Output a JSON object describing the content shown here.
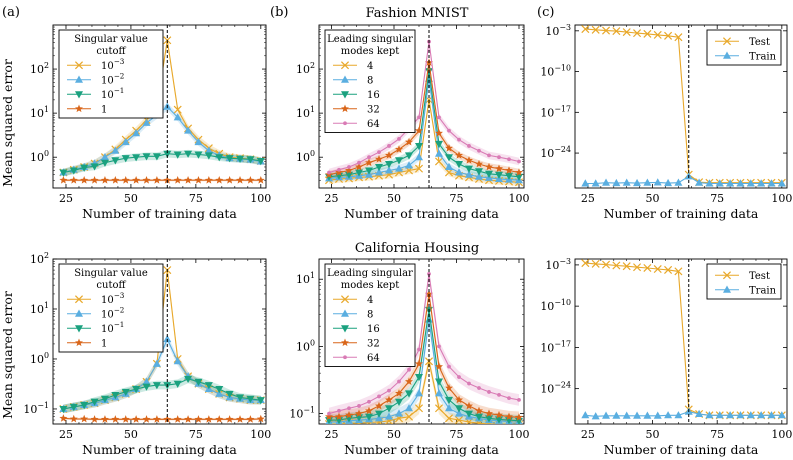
{
  "panel_labels": [
    "(a)",
    "(b)",
    "(c)"
  ],
  "titles": {
    "top": "Fashion MNIST",
    "bottom": "California Housing"
  },
  "ylabel": "Mean squared error",
  "xlabel": "Number of training data",
  "legend_titles": {
    "a": "Singular value cutoff",
    "b": "Leading singular modes kept"
  },
  "colors": {
    "yellow": "#e8a82a",
    "blue": "#5aaee0",
    "green": "#1aa17f",
    "orange": "#d9661a",
    "pink": "#d97bb5"
  },
  "chart_data": [
    {
      "id": "fashion_a",
      "type": "line",
      "title": "",
      "xlabel": "Number of training data",
      "ylabel": "Mean squared error",
      "yscale": "log",
      "xlim": [
        20,
        102
      ],
      "ylim": [
        0.2,
        1000
      ],
      "xticks": [
        25,
        50,
        75,
        100
      ],
      "yticks": [
        1,
        10,
        100
      ],
      "yticklabels": [
        "10^0",
        "10^1",
        "10^2"
      ],
      "vline": 64,
      "legend": {
        "title": "Singular value cutoff",
        "position": "upper-left"
      },
      "x": [
        24,
        28,
        32,
        36,
        40,
        44,
        48,
        52,
        56,
        60,
        64,
        68,
        72,
        76,
        80,
        84,
        88,
        92,
        96,
        100
      ],
      "series": [
        {
          "name": "10^-3",
          "marker": "x",
          "color": "#e8a82a",
          "values": [
            0.45,
            0.52,
            0.6,
            0.72,
            1.0,
            1.5,
            2.5,
            4.0,
            7.0,
            14.0,
            450,
            12.0,
            4.5,
            2.5,
            1.6,
            1.2,
            1.0,
            0.95,
            0.9,
            0.82
          ]
        },
        {
          "name": "10^-2",
          "marker": "triangle-up",
          "color": "#5aaee0",
          "values": [
            0.45,
            0.52,
            0.6,
            0.72,
            1.0,
            1.4,
            2.2,
            3.5,
            6.0,
            9.0,
            14.0,
            8.0,
            4.0,
            2.2,
            1.4,
            1.1,
            0.95,
            0.92,
            0.88,
            0.8
          ]
        },
        {
          "name": "10^-1",
          "marker": "triangle-down",
          "color": "#1aa17f",
          "values": [
            0.45,
            0.5,
            0.58,
            0.62,
            0.75,
            0.85,
            0.95,
            1.0,
            1.05,
            1.05,
            1.2,
            1.15,
            1.2,
            1.15,
            1.1,
            1.0,
            0.95,
            0.92,
            0.9,
            0.82
          ]
        },
        {
          "name": "1",
          "marker": "star",
          "color": "#d9661a",
          "values": [
            0.3,
            0.3,
            0.3,
            0.3,
            0.3,
            0.3,
            0.3,
            0.3,
            0.3,
            0.3,
            0.3,
            0.3,
            0.3,
            0.3,
            0.3,
            0.3,
            0.3,
            0.3,
            0.3,
            0.3
          ]
        }
      ]
    },
    {
      "id": "fashion_b",
      "type": "line",
      "title": "Fashion MNIST",
      "xlabel": "Number of training data",
      "ylabel": "",
      "yscale": "log",
      "xlim": [
        20,
        102
      ],
      "ylim": [
        0.2,
        1000
      ],
      "xticks": [
        25,
        50,
        75,
        100
      ],
      "yticks": [
        1,
        10,
        100
      ],
      "yticklabels": [
        "10^0",
        "10^1",
        "10^2"
      ],
      "vline": 64,
      "legend": {
        "title": "Leading singular modes kept",
        "position": "upper-left"
      },
      "x": [
        24,
        28,
        32,
        36,
        40,
        44,
        48,
        52,
        56,
        60,
        64,
        68,
        72,
        76,
        80,
        84,
        88,
        92,
        96,
        100
      ],
      "series": [
        {
          "name": "4",
          "marker": "x",
          "color": "#e8a82a",
          "values": [
            0.3,
            0.32,
            0.33,
            0.35,
            0.36,
            0.38,
            0.4,
            0.45,
            0.5,
            0.55,
            20,
            0.8,
            0.45,
            0.38,
            0.35,
            0.32,
            0.3,
            0.29,
            0.28,
            0.27
          ]
        },
        {
          "name": "8",
          "marker": "triangle-up",
          "color": "#5aaee0",
          "values": [
            0.33,
            0.35,
            0.36,
            0.38,
            0.4,
            0.45,
            0.5,
            0.55,
            0.65,
            1.0,
            60,
            1.2,
            0.6,
            0.45,
            0.4,
            0.36,
            0.34,
            0.32,
            0.31,
            0.3
          ]
        },
        {
          "name": "16",
          "marker": "triangle-down",
          "color": "#1aa17f",
          "values": [
            0.36,
            0.38,
            0.4,
            0.45,
            0.5,
            0.6,
            0.7,
            0.85,
            1.1,
            1.8,
            90,
            2.0,
            1.0,
            0.7,
            0.55,
            0.48,
            0.42,
            0.4,
            0.38,
            0.36
          ]
        },
        {
          "name": "32",
          "marker": "star",
          "color": "#d9661a",
          "values": [
            0.4,
            0.45,
            0.5,
            0.6,
            0.75,
            0.9,
            1.1,
            1.5,
            2.2,
            4.0,
            140,
            3.5,
            1.6,
            1.1,
            0.85,
            0.7,
            0.6,
            0.55,
            0.5,
            0.45
          ]
        },
        {
          "name": "64",
          "marker": "dot",
          "color": "#d97bb5",
          "values": [
            0.45,
            0.52,
            0.6,
            0.75,
            1.0,
            1.3,
            1.8,
            2.6,
            4.5,
            8.0,
            420,
            8.0,
            4.0,
            2.5,
            1.8,
            1.4,
            1.1,
            1.0,
            0.9,
            0.8
          ]
        }
      ]
    },
    {
      "id": "fashion_c",
      "type": "line",
      "title": "",
      "xlabel": "Number of training data",
      "ylabel": "",
      "yscale": "log",
      "xlim": [
        20,
        102
      ],
      "ylim": [
        1e-30,
        0.01
      ],
      "xticks": [
        25,
        50,
        75,
        100
      ],
      "yticks": [
        0.001,
        1e-10,
        1e-17,
        1e-24
      ],
      "yticklabels": [
        "10^-3",
        "10^-10",
        "10^-17",
        "10^-24"
      ],
      "vline": 64,
      "legend": {
        "title": "",
        "position": "upper-right"
      },
      "x": [
        24,
        28,
        32,
        36,
        40,
        44,
        48,
        52,
        56,
        60,
        64,
        68,
        72,
        76,
        80,
        84,
        88,
        92,
        96,
        100
      ],
      "series": [
        {
          "name": "Test",
          "marker": "x",
          "color": "#e8a82a",
          "values": [
            0.002,
            0.0015,
            0.0011,
            0.0009,
            0.0006,
            0.0004,
            0.0003,
            0.0002,
            0.00014,
            8e-05,
            2e-28,
            1e-29,
            8e-30,
            8e-30,
            8e-30,
            8e-30,
            8e-30,
            8e-30,
            8e-30,
            8e-30
          ]
        },
        {
          "name": "Train",
          "marker": "triangle-up",
          "color": "#5aaee0",
          "values": [
            6e-30,
            6e-30,
            8e-30,
            7e-30,
            8e-30,
            7e-30,
            8e-30,
            9e-30,
            7e-30,
            8e-30,
            1e-28,
            8e-30,
            6e-30,
            6e-30,
            6e-30,
            6e-30,
            6e-30,
            6e-30,
            6e-30,
            6e-30
          ]
        }
      ]
    },
    {
      "id": "housing_a",
      "type": "line",
      "title": "",
      "xlabel": "Number of training data",
      "ylabel": "Mean squared error",
      "yscale": "log",
      "xlim": [
        20,
        102
      ],
      "ylim": [
        0.05,
        100
      ],
      "xticks": [
        25,
        50,
        75,
        100
      ],
      "yticks": [
        0.1,
        1,
        10,
        100
      ],
      "yticklabels": [
        "10^-1",
        "10^0",
        "10^1",
        "10^2"
      ],
      "vline": 64,
      "legend": {
        "title": "Singular value cutoff",
        "position": "upper-left"
      },
      "x": [
        24,
        28,
        32,
        36,
        40,
        44,
        48,
        52,
        56,
        60,
        64,
        68,
        72,
        76,
        80,
        84,
        88,
        92,
        96,
        100
      ],
      "series": [
        {
          "name": "10^-3",
          "marker": "x",
          "color": "#e8a82a",
          "values": [
            0.1,
            0.11,
            0.12,
            0.13,
            0.15,
            0.17,
            0.2,
            0.25,
            0.35,
            0.8,
            60,
            1.0,
            0.45,
            0.32,
            0.25,
            0.2,
            0.17,
            0.16,
            0.15,
            0.15
          ]
        },
        {
          "name": "10^-2",
          "marker": "triangle-up",
          "color": "#5aaee0",
          "values": [
            0.1,
            0.11,
            0.12,
            0.13,
            0.15,
            0.17,
            0.2,
            0.25,
            0.35,
            0.8,
            2.5,
            0.9,
            0.45,
            0.32,
            0.25,
            0.2,
            0.17,
            0.16,
            0.15,
            0.15
          ]
        },
        {
          "name": "10^-1",
          "marker": "triangle-down",
          "color": "#1aa17f",
          "values": [
            0.1,
            0.11,
            0.12,
            0.14,
            0.16,
            0.19,
            0.22,
            0.25,
            0.28,
            0.3,
            0.3,
            0.32,
            0.4,
            0.35,
            0.3,
            0.25,
            0.2,
            0.17,
            0.16,
            0.15
          ]
        },
        {
          "name": "1",
          "marker": "star",
          "color": "#d9661a",
          "values": [
            0.065,
            0.063,
            0.063,
            0.062,
            0.062,
            0.062,
            0.062,
            0.062,
            0.062,
            0.062,
            0.062,
            0.062,
            0.062,
            0.062,
            0.062,
            0.062,
            0.062,
            0.062,
            0.062,
            0.063
          ]
        }
      ]
    },
    {
      "id": "housing_b",
      "type": "line",
      "title": "California Housing",
      "xlabel": "Number of training data",
      "ylabel": "",
      "yscale": "log",
      "xlim": [
        20,
        102
      ],
      "ylim": [
        0.07,
        20
      ],
      "xticks": [
        25,
        50,
        75,
        100
      ],
      "yticks": [
        0.1,
        1,
        10
      ],
      "yticklabels": [
        "10^-1",
        "10^0",
        "10^1"
      ],
      "vline": 64,
      "legend": {
        "title": "Leading singular modes kept",
        "position": "upper-left"
      },
      "x": [
        24,
        28,
        32,
        36,
        40,
        44,
        48,
        52,
        56,
        60,
        64,
        68,
        72,
        76,
        80,
        84,
        88,
        92,
        96,
        100
      ],
      "series": [
        {
          "name": "4",
          "marker": "x",
          "color": "#e8a82a",
          "values": [
            0.07,
            0.07,
            0.072,
            0.072,
            0.074,
            0.075,
            0.078,
            0.085,
            0.09,
            0.12,
            0.6,
            0.12,
            0.085,
            0.08,
            0.075,
            0.072,
            0.07,
            0.07,
            0.07,
            0.068
          ]
        },
        {
          "name": "8",
          "marker": "triangle-up",
          "color": "#5aaee0",
          "values": [
            0.075,
            0.075,
            0.078,
            0.08,
            0.082,
            0.085,
            0.09,
            0.1,
            0.12,
            0.2,
            2.5,
            0.2,
            0.12,
            0.1,
            0.09,
            0.085,
            0.08,
            0.078,
            0.076,
            0.075
          ]
        },
        {
          "name": "16",
          "marker": "triangle-down",
          "color": "#1aa17f",
          "values": [
            0.08,
            0.08,
            0.085,
            0.088,
            0.09,
            0.1,
            0.12,
            0.15,
            0.2,
            0.35,
            3.5,
            0.3,
            0.16,
            0.12,
            0.1,
            0.09,
            0.085,
            0.082,
            0.08,
            0.078
          ]
        },
        {
          "name": "32",
          "marker": "star",
          "color": "#d9661a",
          "values": [
            0.09,
            0.09,
            0.095,
            0.1,
            0.11,
            0.13,
            0.16,
            0.2,
            0.3,
            0.55,
            6.0,
            0.5,
            0.24,
            0.16,
            0.13,
            0.11,
            0.1,
            0.095,
            0.09,
            0.088
          ]
        },
        {
          "name": "64",
          "marker": "dot",
          "color": "#d97bb5",
          "values": [
            0.1,
            0.11,
            0.12,
            0.13,
            0.15,
            0.18,
            0.22,
            0.3,
            0.45,
            0.9,
            12.0,
            1.0,
            0.5,
            0.35,
            0.28,
            0.24,
            0.21,
            0.19,
            0.17,
            0.16
          ]
        }
      ]
    },
    {
      "id": "housing_c",
      "type": "line",
      "title": "",
      "xlabel": "Number of training data",
      "ylabel": "",
      "yscale": "log",
      "xlim": [
        20,
        102
      ],
      "ylim": [
        1e-30,
        0.01
      ],
      "xticks": [
        25,
        50,
        75,
        100
      ],
      "yticks": [
        0.001,
        1e-10,
        1e-17,
        1e-24
      ],
      "yticklabels": [
        "10^-3",
        "10^-10",
        "10^-17",
        "10^-24"
      ],
      "vline": 64,
      "legend": {
        "title": "",
        "position": "upper-right"
      },
      "x": [
        24,
        28,
        32,
        36,
        40,
        44,
        48,
        52,
        56,
        60,
        64,
        68,
        72,
        76,
        80,
        84,
        88,
        92,
        96,
        100
      ],
      "series": [
        {
          "name": "Test",
          "marker": "x",
          "color": "#e8a82a",
          "values": [
            0.002,
            0.0015,
            0.0011,
            0.0008,
            0.0006,
            0.0004,
            0.0003,
            0.0002,
            0.00014,
            8e-05,
            3e-28,
            5e-29,
            3e-29,
            3e-29,
            3e-29,
            3e-29,
            3e-29,
            3e-29,
            3e-29,
            3e-29
          ]
        },
        {
          "name": "Train",
          "marker": "triangle-up",
          "color": "#5aaee0",
          "values": [
            3e-29,
            2e-29,
            2.5e-29,
            2.5e-29,
            2.5e-29,
            2.5e-29,
            2.5e-29,
            2.5e-29,
            3e-29,
            3e-29,
            1.2e-28,
            5e-29,
            3e-29,
            3e-29,
            3e-29,
            3e-29,
            3e-29,
            3e-29,
            3e-29,
            3e-29
          ]
        }
      ]
    }
  ]
}
